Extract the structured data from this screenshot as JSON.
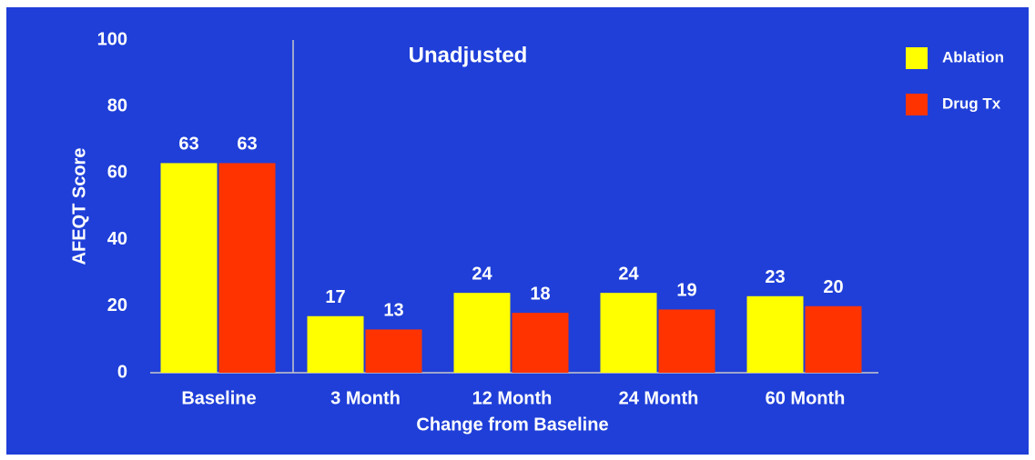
{
  "chart_data": {
    "type": "bar",
    "annotation": "Unadjusted",
    "x_label": "Change from Baseline",
    "y_label": "AFEQT Score",
    "categories": [
      "Baseline",
      "3 Month",
      "12 Month",
      "24 Month",
      "60 Month"
    ],
    "series": [
      {
        "name": "Ablation",
        "color": "#ffff00",
        "values": [
          63,
          17,
          24,
          24,
          23
        ]
      },
      {
        "name": "Drug Tx",
        "color": "#ff3300",
        "values": [
          63,
          13,
          18,
          19,
          20
        ]
      }
    ],
    "ylim": [
      0,
      100
    ],
    "yticks": [
      0,
      20,
      40,
      60,
      80,
      100
    ],
    "grid": false,
    "legend": "right",
    "background": "#1f3fd8"
  }
}
